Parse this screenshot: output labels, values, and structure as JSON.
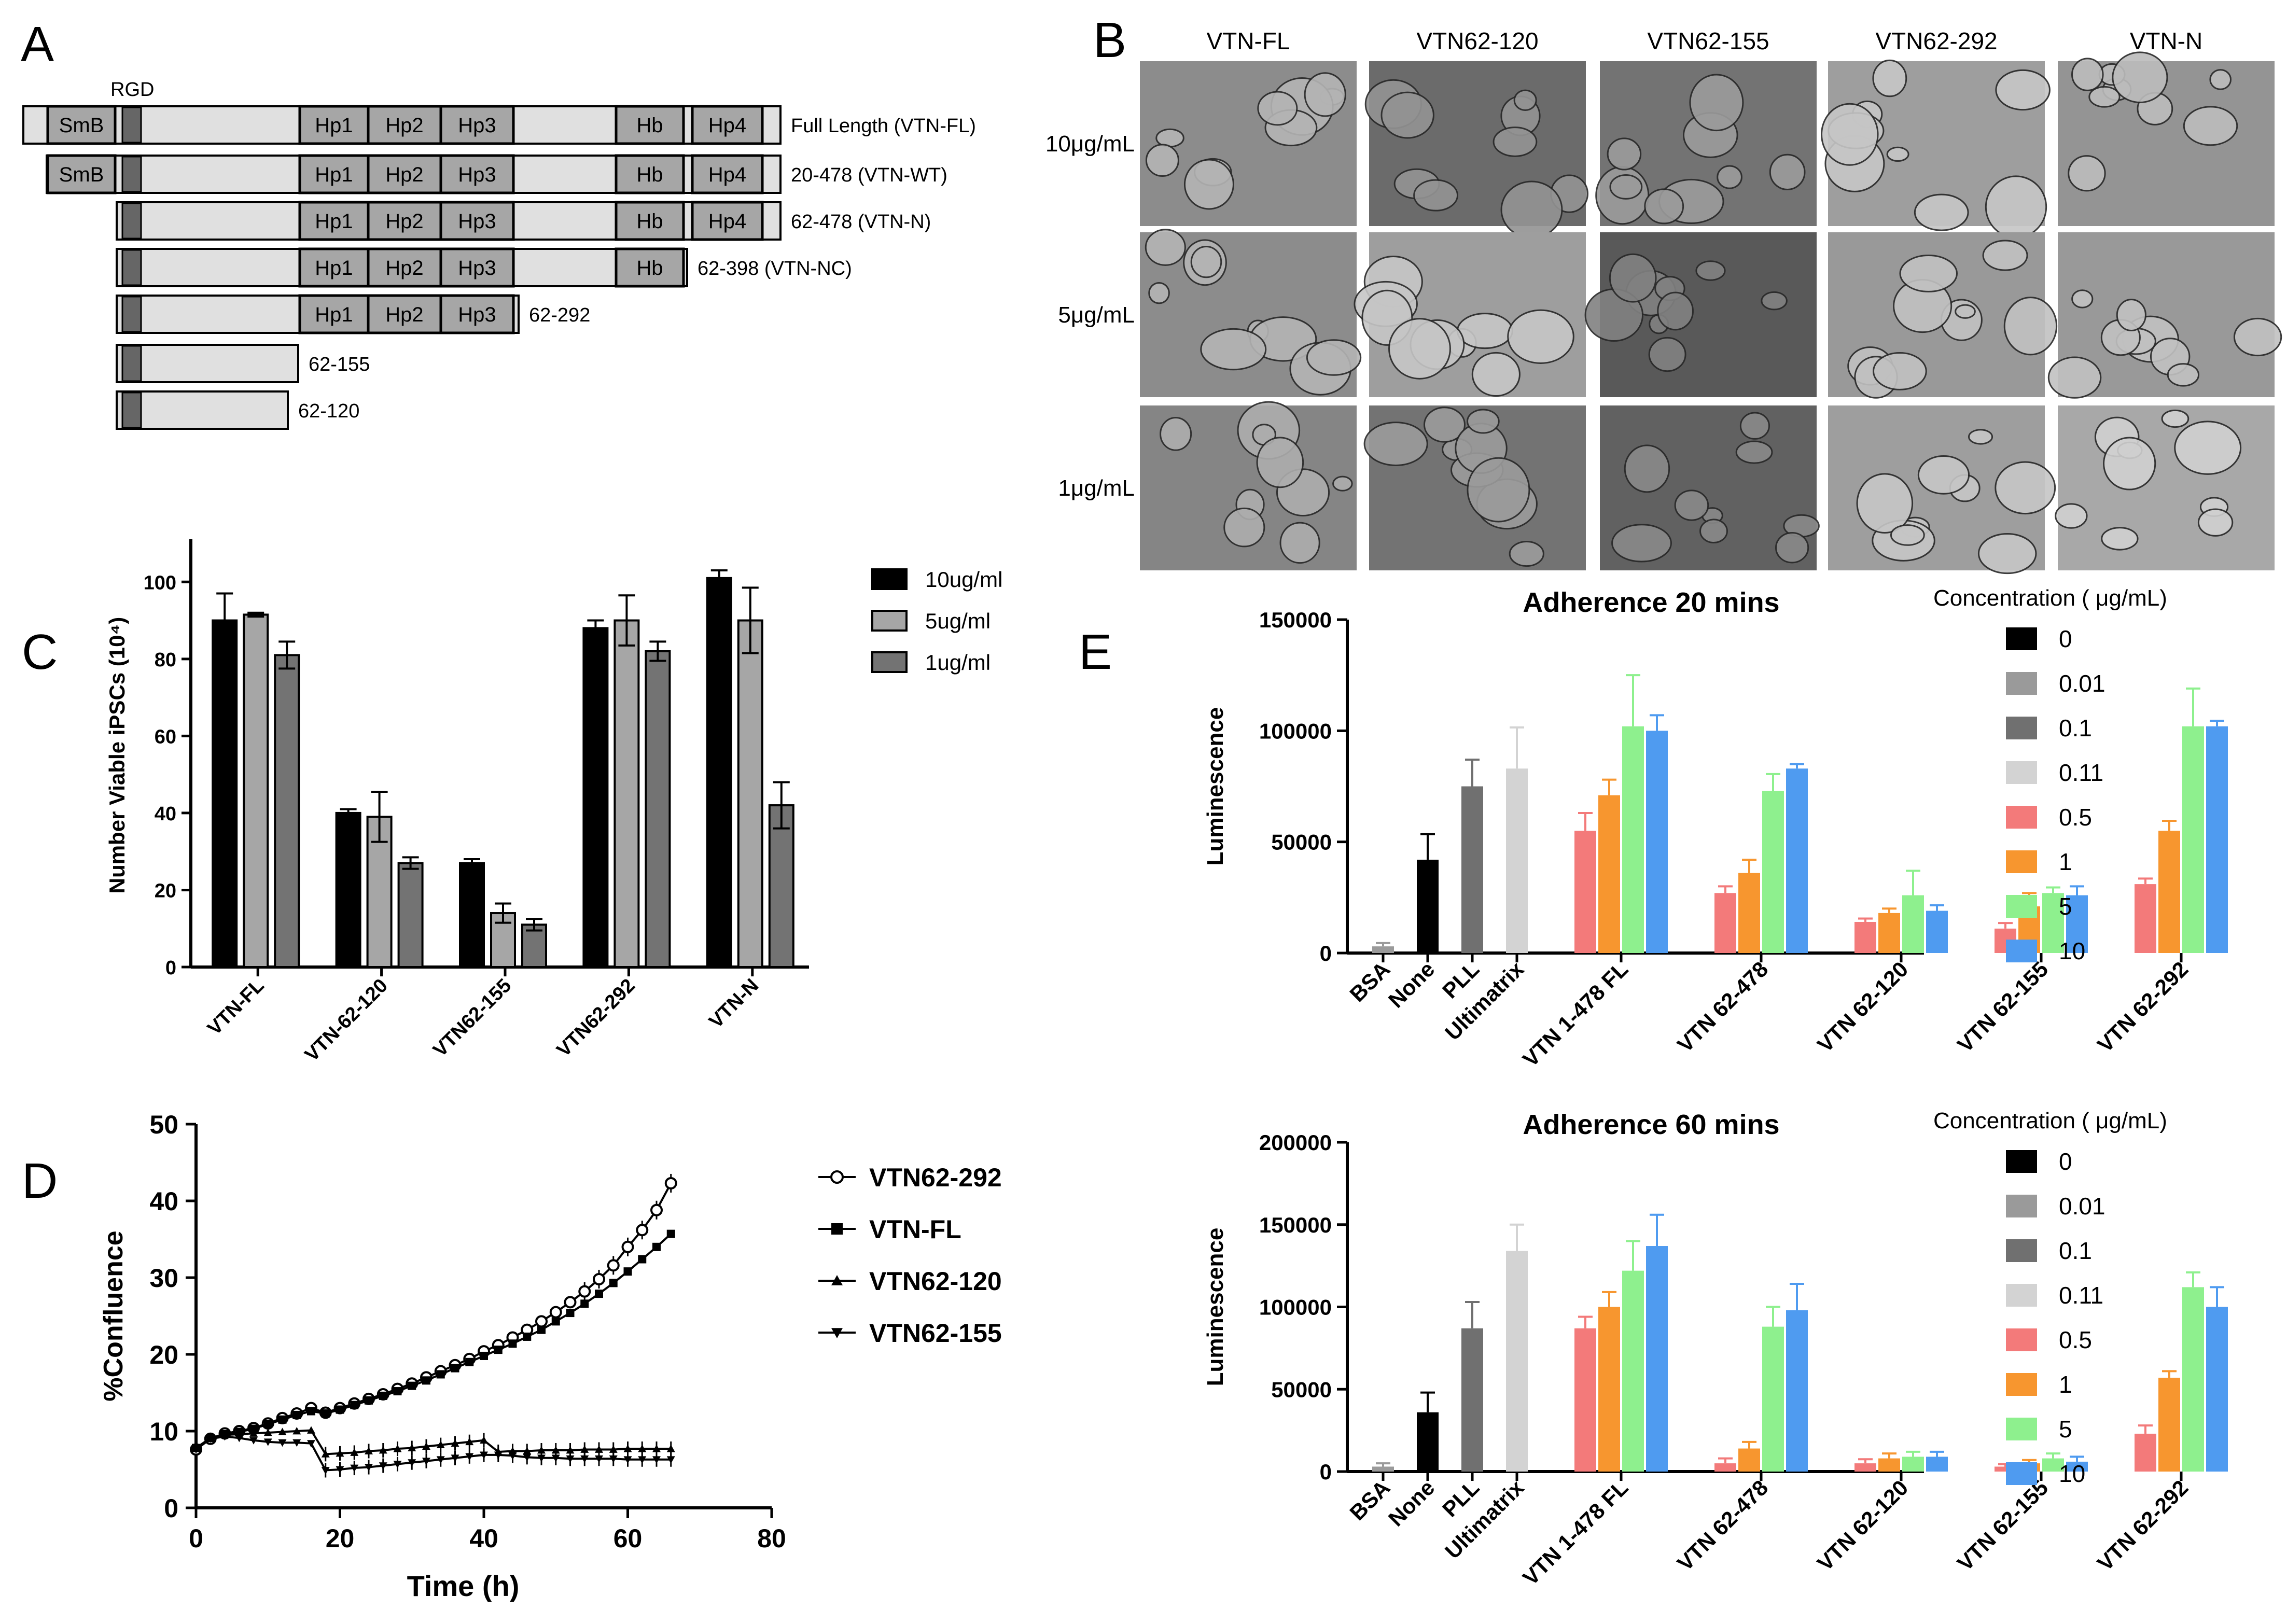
{
  "panel_letters": [
    "A",
    "B",
    "C",
    "D",
    "E"
  ],
  "panelA": {
    "rgd_label": "RGD",
    "constructs": [
      {
        "label": "Full Length (VTN-FL)",
        "domains": [
          "SmB",
          "Hp1",
          "Hp2",
          "Hp3",
          "Hb",
          "Hp4"
        ]
      },
      {
        "label": "20-478 (VTN-WT)",
        "domains": [
          "SmB",
          "Hp1",
          "Hp2",
          "Hp3",
          "Hb",
          "Hp4"
        ]
      },
      {
        "label": "62-478 (VTN-N)",
        "domains": [
          "Hp1",
          "Hp2",
          "Hp3",
          "Hb",
          "Hp4"
        ]
      },
      {
        "label": "62-398 (VTN-NC)",
        "domains": [
          "Hp1",
          "Hp2",
          "Hp3",
          "Hb"
        ]
      },
      {
        "label": "62-292",
        "domains": [
          "Hp1",
          "Hp2",
          "Hp3"
        ]
      },
      {
        "label": "62-155",
        "domains": []
      },
      {
        "label": "62-120",
        "domains": []
      }
    ]
  },
  "panelB": {
    "columns": [
      "VTN-FL",
      "VTN62-120",
      "VTN62-155",
      "VTN62-292",
      "VTN-N"
    ],
    "rows": [
      "10μg/mL",
      "5μg/mL",
      "1μg/mL"
    ],
    "brightness": [
      [
        0.55,
        0.42,
        0.45,
        0.62,
        0.58
      ],
      [
        0.55,
        0.62,
        0.35,
        0.6,
        0.6
      ],
      [
        0.52,
        0.45,
        0.38,
        0.62,
        0.66
      ]
    ]
  },
  "colors": {
    "c10": "#000000",
    "c5": "#a6a6a6",
    "c1": "#737373",
    "e0": "#000000",
    "e001": "#9a9a9a",
    "e01": "#707070",
    "e011": "#d3d3d3",
    "e05": "#f37a7a",
    "e1": "#f7962f",
    "e5": "#8ef08e",
    "e10": "#4f9bf0",
    "domain_fill": "#a6a6a6",
    "bar_fill": "#e0e0e0",
    "rgd_fill": "#666666"
  },
  "chart_data": [
    {
      "id": "C",
      "type": "bar",
      "ylabel": "Number Viable iPSCs (10⁴)",
      "ylim": [
        0,
        110
      ],
      "yticks": [
        0,
        20,
        40,
        60,
        80,
        100
      ],
      "categories": [
        "VTN-FL",
        "VTN-62-120",
        "VTN62-155",
        "VTN62-292",
        "VTN-N"
      ],
      "series": [
        {
          "name": "10ug/ml",
          "color": "#000000",
          "values": [
            90,
            40,
            27,
            88,
            101
          ],
          "errors": [
            7,
            1,
            1,
            2,
            2
          ]
        },
        {
          "name": "5ug/ml",
          "color": "#a6a6a6",
          "values": [
            91.5,
            39,
            14,
            90,
            90
          ],
          "errors": [
            0.5,
            6.5,
            2.5,
            6.5,
            8.5
          ]
        },
        {
          "name": "1ug/ml",
          "color": "#737373",
          "values": [
            81,
            27,
            11,
            82,
            42
          ],
          "errors": [
            3.5,
            1.5,
            1.5,
            2.5,
            6
          ]
        }
      ]
    },
    {
      "id": "D",
      "type": "line",
      "xlabel": "Time (h)",
      "ylabel": "%Confluence",
      "xlim": [
        0,
        80
      ],
      "ylim": [
        0,
        50
      ],
      "xticks": [
        0,
        20,
        40,
        60,
        80
      ],
      "yticks": [
        0,
        10,
        20,
        30,
        40,
        50
      ],
      "series": [
        {
          "name": "VTN62-292",
          "marker": "circle",
          "x": [
            0,
            2,
            4,
            6,
            8,
            10,
            12,
            14,
            16,
            18,
            20,
            22,
            24,
            26,
            28,
            30,
            32,
            34,
            36,
            38,
            40,
            42,
            44,
            46,
            48,
            50,
            52,
            54,
            56,
            58,
            60,
            62,
            64,
            66
          ],
          "y": [
            7.6,
            9,
            9.7,
            10,
            10.4,
            11,
            11.7,
            12.3,
            13,
            12.4,
            13,
            13.6,
            14.2,
            14.8,
            15.5,
            16.2,
            17,
            17.8,
            18.6,
            19.4,
            20.4,
            21.2,
            22.2,
            23.2,
            24.3,
            25.5,
            26.8,
            28.2,
            29.8,
            31.6,
            34,
            36.2,
            38.8,
            42.3
          ]
        },
        {
          "name": "VTN-FL",
          "marker": "square",
          "x": [
            0,
            2,
            4,
            6,
            8,
            10,
            12,
            14,
            16,
            18,
            20,
            22,
            24,
            26,
            28,
            30,
            32,
            34,
            36,
            38,
            40,
            42,
            44,
            46,
            48,
            50,
            52,
            54,
            56,
            58,
            60,
            62,
            64,
            66
          ],
          "y": [
            7.8,
            9.1,
            9.6,
            9.9,
            10.3,
            10.9,
            11.5,
            12.1,
            12.6,
            12.3,
            12.8,
            13.4,
            14,
            14.6,
            15.2,
            15.9,
            16.6,
            17.4,
            18.2,
            19,
            19.8,
            20.6,
            21.4,
            22.3,
            23.2,
            24.3,
            25.4,
            26.6,
            27.9,
            29.3,
            30.8,
            32.4,
            34,
            35.7
          ]
        },
        {
          "name": "VTN62-120",
          "marker": "triangle-up",
          "x": [
            0,
            2,
            4,
            6,
            8,
            10,
            12,
            14,
            16,
            18,
            20,
            22,
            24,
            26,
            28,
            30,
            32,
            34,
            36,
            38,
            40,
            42,
            44,
            46,
            48,
            50,
            52,
            54,
            56,
            58,
            60,
            62,
            64,
            66
          ],
          "y": [
            7.8,
            9,
            9.5,
            9.6,
            9.7,
            9.8,
            9.9,
            10,
            10.1,
            7,
            7.1,
            7.2,
            7.4,
            7.5,
            7.7,
            7.8,
            8,
            8.2,
            8.4,
            8.6,
            8.8,
            7.3,
            7.4,
            7.4,
            7.5,
            7.5,
            7.5,
            7.6,
            7.6,
            7.6,
            7.7,
            7.7,
            7.7,
            7.7
          ]
        },
        {
          "name": "VTN62-155",
          "marker": "triangle-down",
          "x": [
            0,
            2,
            4,
            6,
            8,
            10,
            12,
            14,
            16,
            18,
            20,
            22,
            24,
            26,
            28,
            30,
            32,
            34,
            36,
            38,
            40,
            42,
            44,
            46,
            48,
            50,
            52,
            54,
            56,
            58,
            60,
            62,
            64,
            66
          ],
          "y": [
            7.6,
            9,
            9.3,
            9.1,
            8.8,
            8.6,
            8.5,
            8.5,
            8.4,
            4.9,
            5,
            5.2,
            5.3,
            5.5,
            5.7,
            5.9,
            6.1,
            6.3,
            6.5,
            6.7,
            6.9,
            6.9,
            6.8,
            6.6,
            6.5,
            6.5,
            6.4,
            6.4,
            6.4,
            6.4,
            6.3,
            6.3,
            6.3,
            6.3
          ]
        }
      ]
    },
    {
      "id": "E1",
      "type": "bar",
      "title": "Adherence 20 mins",
      "ylabel": "Luminescence",
      "ylim": [
        0,
        150000
      ],
      "yticks": [
        0,
        50000,
        100000,
        150000
      ],
      "legend_title": "Concentration ( μg/mL)",
      "legend": [
        {
          "name": "0",
          "color": "#000000"
        },
        {
          "name": "0.01",
          "color": "#9a9a9a"
        },
        {
          "name": "0.1",
          "color": "#707070"
        },
        {
          "name": "0.11",
          "color": "#d3d3d3"
        },
        {
          "name": "0.5",
          "color": "#f37a7a"
        },
        {
          "name": "1",
          "color": "#f7962f"
        },
        {
          "name": "5",
          "color": "#8ef08e"
        },
        {
          "name": "10",
          "color": "#4f9bf0"
        }
      ],
      "categories": [
        "BSA",
        "None",
        "PLL",
        "Ultimatrix",
        "VTN 1-478 FL",
        "VTN 62-478",
        "VTN 62-120",
        "VTN 62-155",
        "VTN 62-292"
      ],
      "groups": [
        {
          "bars": [
            {
              "conc": "0.01",
              "value": 3000,
              "error": 1500
            }
          ]
        },
        {
          "bars": [
            {
              "conc": "0",
              "value": 42000,
              "error": 11500
            }
          ]
        },
        {
          "bars": [
            {
              "conc": "0.1",
              "value": 75000,
              "error": 12000
            }
          ]
        },
        {
          "bars": [
            {
              "conc": "0.11",
              "value": 83000,
              "error": 18500
            }
          ]
        },
        {
          "bars": [
            {
              "conc": "0.5",
              "value": 55000,
              "error": 8000
            },
            {
              "conc": "1",
              "value": 71000,
              "error": 7000
            },
            {
              "conc": "5",
              "value": 102000,
              "error": 23000
            },
            {
              "conc": "10",
              "value": 100000,
              "error": 7000
            }
          ]
        },
        {
          "bars": [
            {
              "conc": "0.5",
              "value": 27000,
              "error": 3000
            },
            {
              "conc": "1",
              "value": 36000,
              "error": 6000
            },
            {
              "conc": "5",
              "value": 73000,
              "error": 7500
            },
            {
              "conc": "10",
              "value": 83000,
              "error": 2000
            }
          ]
        },
        {
          "bars": [
            {
              "conc": "0.5",
              "value": 14000,
              "error": 1500
            },
            {
              "conc": "1",
              "value": 18000,
              "error": 2000
            },
            {
              "conc": "5",
              "value": 26000,
              "error": 11000
            },
            {
              "conc": "10",
              "value": 19000,
              "error": 2500
            }
          ]
        },
        {
          "bars": [
            {
              "conc": "0.5",
              "value": 11000,
              "error": 2500
            },
            {
              "conc": "1",
              "value": 21000,
              "error": 6000
            },
            {
              "conc": "5",
              "value": 27000,
              "error": 2500
            },
            {
              "conc": "10",
              "value": 26000,
              "error": 4000
            }
          ]
        },
        {
          "bars": [
            {
              "conc": "0.5",
              "value": 31000,
              "error": 2500
            },
            {
              "conc": "1",
              "value": 55000,
              "error": 4500
            },
            {
              "conc": "5",
              "value": 102000,
              "error": 17000
            },
            {
              "conc": "10",
              "value": 102000,
              "error": 2500
            }
          ]
        }
      ]
    },
    {
      "id": "E2",
      "type": "bar",
      "title": "Adherence 60 mins",
      "ylabel": "Luminescence",
      "ylim": [
        0,
        200000
      ],
      "yticks": [
        0,
        50000,
        100000,
        150000,
        200000
      ],
      "legend_title": "Concentration ( μg/mL)",
      "legend": [
        {
          "name": "0",
          "color": "#000000"
        },
        {
          "name": "0.01",
          "color": "#9a9a9a"
        },
        {
          "name": "0.1",
          "color": "#707070"
        },
        {
          "name": "0.11",
          "color": "#d3d3d3"
        },
        {
          "name": "0.5",
          "color": "#f37a7a"
        },
        {
          "name": "1",
          "color": "#f7962f"
        },
        {
          "name": "5",
          "color": "#8ef08e"
        },
        {
          "name": "10",
          "color": "#4f9bf0"
        }
      ],
      "categories": [
        "BSA",
        "None",
        "PLL",
        "Ultimatrix",
        "VTN 1-478 FL",
        "VTN 62-478",
        "VTN 62-120",
        "VTN 62-155",
        "VTN 62-292"
      ],
      "groups": [
        {
          "bars": [
            {
              "conc": "0.01",
              "value": 3000,
              "error": 2000
            }
          ]
        },
        {
          "bars": [
            {
              "conc": "0",
              "value": 36000,
              "error": 12000
            }
          ]
        },
        {
          "bars": [
            {
              "conc": "0.1",
              "value": 87000,
              "error": 16000
            }
          ]
        },
        {
          "bars": [
            {
              "conc": "0.11",
              "value": 134000,
              "error": 16000
            }
          ]
        },
        {
          "bars": [
            {
              "conc": "0.5",
              "value": 87000,
              "error": 7000
            },
            {
              "conc": "1",
              "value": 100000,
              "error": 9000
            },
            {
              "conc": "5",
              "value": 122000,
              "error": 18000
            },
            {
              "conc": "10",
              "value": 137000,
              "error": 19000
            }
          ]
        },
        {
          "bars": [
            {
              "conc": "0.5",
              "value": 5000,
              "error": 3000
            },
            {
              "conc": "1",
              "value": 14000,
              "error": 4000
            },
            {
              "conc": "5",
              "value": 88000,
              "error": 12000
            },
            {
              "conc": "10",
              "value": 98000,
              "error": 16000
            }
          ]
        },
        {
          "bars": [
            {
              "conc": "0.5",
              "value": 5000,
              "error": 2500
            },
            {
              "conc": "1",
              "value": 8000,
              "error": 3000
            },
            {
              "conc": "5",
              "value": 9000,
              "error": 3000
            },
            {
              "conc": "10",
              "value": 9000,
              "error": 3000
            }
          ]
        },
        {
          "bars": [
            {
              "conc": "0.5",
              "value": 3000,
              "error": 1500
            },
            {
              "conc": "1",
              "value": 5000,
              "error": 2000
            },
            {
              "conc": "5",
              "value": 8000,
              "error": 3000
            },
            {
              "conc": "10",
              "value": 6000,
              "error": 3000
            }
          ]
        },
        {
          "bars": [
            {
              "conc": "0.5",
              "value": 23000,
              "error": 5000
            },
            {
              "conc": "1",
              "value": 57000,
              "error": 4000
            },
            {
              "conc": "5",
              "value": 112000,
              "error": 9000
            },
            {
              "conc": "10",
              "value": 100000,
              "error": 12000
            }
          ]
        }
      ]
    }
  ]
}
